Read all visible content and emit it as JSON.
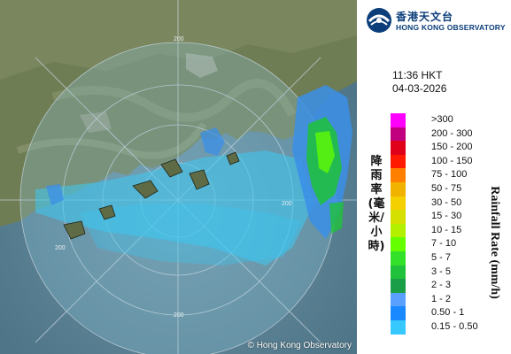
{
  "map": {
    "range_labels": [
      "200",
      "200",
      "200",
      "200"
    ],
    "credit": "© Hong Kong Observatory"
  },
  "header": {
    "logo_chinese": "香港天文台",
    "logo_english": "HONG KONG OBSERVATORY",
    "time": "11:36 HKT",
    "date": "04-03-2026"
  },
  "legend": {
    "title_chinese": "降雨率(毫米/小時)",
    "title_english": "Rainfall Rate (mm/h)",
    "items": [
      {
        "label": ">300",
        "color": "#ff00ff"
      },
      {
        "label": "200 - 300",
        "color": "#c0007e"
      },
      {
        "label": "150 - 200",
        "color": "#e0001a"
      },
      {
        "label": "100 - 150",
        "color": "#ff1a00"
      },
      {
        "label": "75 - 100",
        "color": "#ff8000"
      },
      {
        "label": "50 - 75",
        "color": "#f2b200"
      },
      {
        "label": "30 - 50",
        "color": "#f5d000"
      },
      {
        "label": "15 - 30",
        "color": "#d6e000"
      },
      {
        "label": "10 - 15",
        "color": "#b2f000"
      },
      {
        "label": "7 - 10",
        "color": "#66ff00"
      },
      {
        "label": "5 - 7",
        "color": "#33e02a"
      },
      {
        "label": "3 - 5",
        "color": "#1fc23a"
      },
      {
        "label": "2 - 3",
        "color": "#1b9e48"
      },
      {
        "label": "1 - 2",
        "color": "#5aa0ff"
      },
      {
        "label": "0.50 - 1",
        "color": "#1a88ff"
      },
      {
        "label": "0.15 - 0.50",
        "color": "#36c8ff"
      }
    ]
  }
}
